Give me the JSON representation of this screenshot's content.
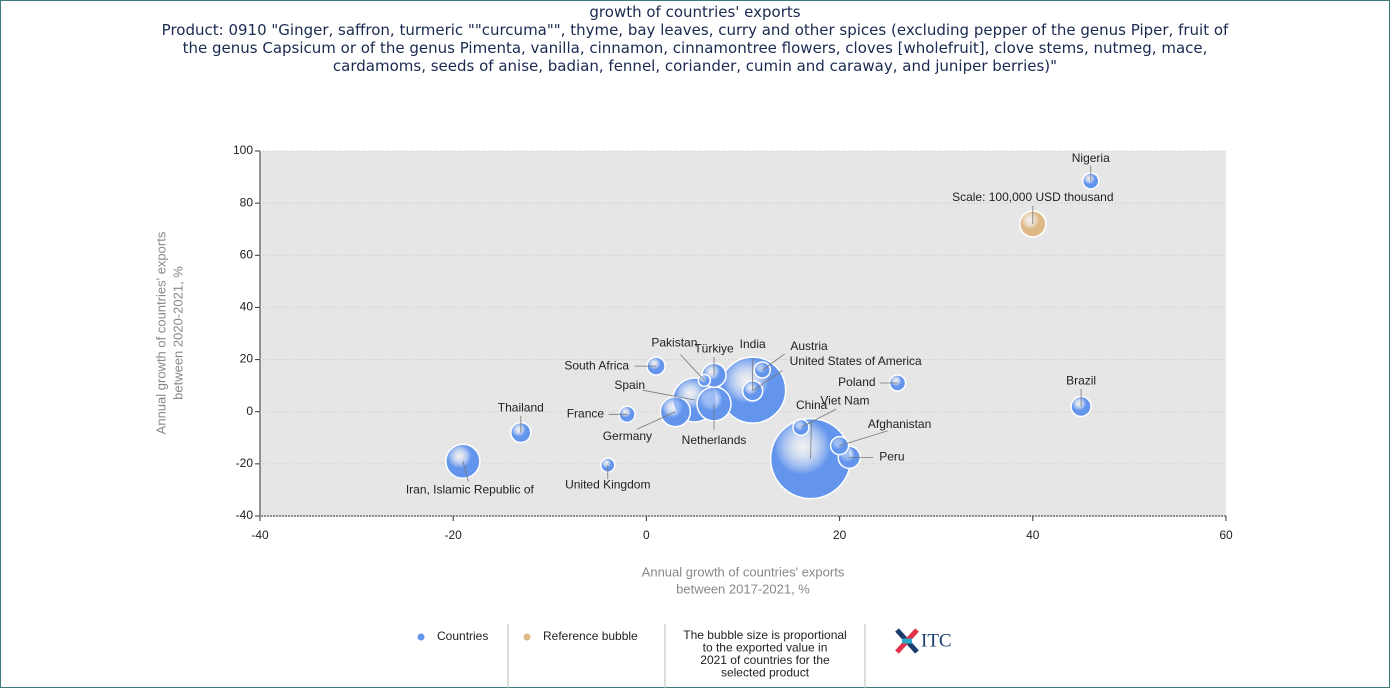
{
  "chart_data": {
    "type": "bubble",
    "title": "growth of countries' exports",
    "subtitle": "Product: 0910 \"Ginger, saffron, turmeric \"\"curcuma\"\", thyme, bay leaves, curry and other spices (excluding pepper of the genus Piper, fruit of the genus Capsicum or of the genus Pimenta, vanilla, cinnamon, cinnamontree flowers, cloves [wholefruit], clove stems, nutmeg, mace, cardamoms, seeds of anise, badian, fennel, coriander, cumin and caraway, and juniper berries)\"",
    "xlabel": [
      "Annual growth of countries' exports",
      "between 2017-2021, %"
    ],
    "ylabel": [
      "Annual growth of countries' exports",
      "between 2020-2021, %"
    ],
    "xlim": [
      -40,
      60
    ],
    "xticks": [
      -40,
      -20,
      0,
      20,
      40,
      60
    ],
    "ylim": [
      -40,
      100
    ],
    "yticks": [
      -40,
      -20,
      0,
      20,
      40,
      60,
      80,
      100
    ],
    "grid": true,
    "series": [
      {
        "name": "Countries",
        "color": "#6495ed",
        "labels": [
          "Nigeria",
          "Brazil",
          "Poland",
          "Pakistan",
          "South Africa",
          "Türkiye",
          "India",
          "Austria",
          "United States of America",
          "Spain",
          "Netherlands",
          "Germany",
          "France",
          "Thailand",
          "Iran, Islamic Republic of",
          "United Kingdom",
          "China",
          "Viet Nam",
          "Afghanistan",
          "Peru"
        ],
        "x": [
          46,
          45,
          26,
          6,
          1,
          7,
          11,
          12,
          11,
          5,
          7,
          3,
          -2,
          -13,
          -19,
          -4,
          17,
          16,
          20,
          21
        ],
        "values": [
          88.5,
          2,
          11,
          12,
          17.5,
          14,
          8.3,
          16,
          8,
          4.5,
          3,
          0,
          -1,
          -8,
          -19,
          -20.5,
          -18,
          -6,
          -13,
          -17.5
        ],
        "sizes": [
          38000,
          59000,
          38000,
          21000,
          48000,
          85000,
          644000,
          38000,
          59000,
          286000,
          171000,
          133000,
          38000,
          59000,
          171000,
          29000,
          947000,
          38000,
          48000,
          72000
        ]
      },
      {
        "name": "Reference bubble",
        "color": "#deb887",
        "labels": [
          "Scale: 100,000 USD thousand"
        ],
        "x": [
          40
        ],
        "values": [
          72
        ],
        "sizes": [
          100000
        ]
      }
    ],
    "note": [
      "The bubble size is proportional",
      "to the exported value in",
      "2021 of countries for the",
      "selected product"
    ],
    "logo": "ITC"
  }
}
